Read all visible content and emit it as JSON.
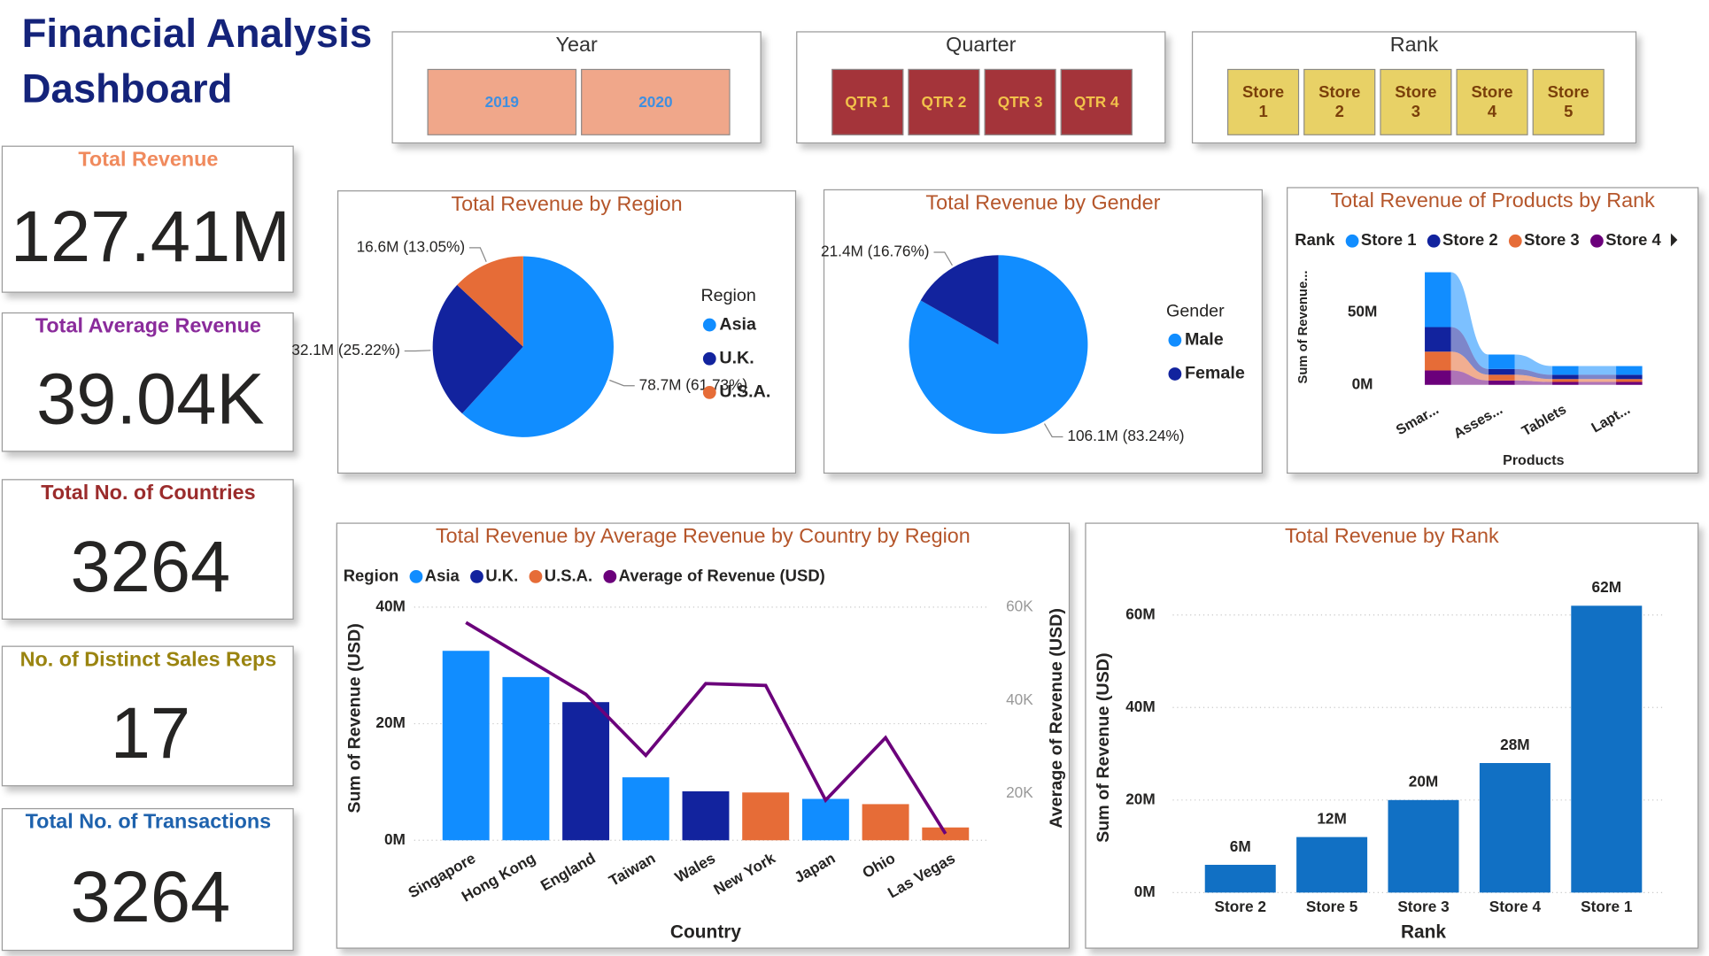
{
  "title": [
    "Financial Analysis",
    "Dashboard"
  ],
  "slicers": [
    {
      "title": "Year",
      "items": [
        "2019",
        "2020"
      ]
    },
    {
      "title": "Quarter",
      "items": [
        "QTR 1",
        "QTR 2",
        "QTR 3",
        "QTR 4"
      ]
    },
    {
      "title": "Rank",
      "items": [
        "Store 1",
        "Store 2",
        "Store 3",
        "Store 4",
        "Store 5"
      ]
    }
  ],
  "cards": [
    {
      "label": "Total Revenue",
      "value": "127.41M"
    },
    {
      "label": "Total Average Revenue",
      "value": "39.04K"
    },
    {
      "label": "Total No. of Countries",
      "value": "3264"
    },
    {
      "label": "No. of Distinct Sales Reps",
      "value": "17"
    },
    {
      "label": "Total No. of Transactions",
      "value": "3264"
    }
  ],
  "chart_data": [
    {
      "type": "pie",
      "title": "Total Revenue by Region",
      "legend_title": "Region",
      "categories": [
        "Asia",
        "U.K.",
        "U.S.A."
      ],
      "values": [
        78.7,
        32.1,
        16.6
      ],
      "value_labels": [
        "78.7M (61.73%)",
        "32.1M (25.22%)",
        "16.6M (13.05%)"
      ],
      "colors": [
        "#118dff",
        "#12239e",
        "#e66c37"
      ]
    },
    {
      "type": "pie",
      "title": "Total Revenue by Gender",
      "legend_title": "Gender",
      "categories": [
        "Male",
        "Female"
      ],
      "values": [
        106.1,
        21.4
      ],
      "value_labels": [
        "106.1M (83.24%)",
        "21.4M (16.76%)"
      ],
      "colors": [
        "#118dff",
        "#12239e"
      ]
    },
    {
      "type": "ribbon",
      "title": "Total Revenue of Products by Rank",
      "legend_title": "Rank",
      "x_label": "Products",
      "y_label": "Sum of Revenue...",
      "categories": [
        "Smar...",
        "Asses...",
        "Tablets",
        "Lapt..."
      ],
      "series": [
        {
          "name": "Store 1",
          "color": "#118dff",
          "values": [
            38,
            10,
            6,
            6
          ]
        },
        {
          "name": "Store 2",
          "color": "#12239e",
          "values": [
            17,
            4,
            3,
            3
          ]
        },
        {
          "name": "Store 3",
          "color": "#e66c37",
          "values": [
            13,
            4,
            2,
            2
          ]
        },
        {
          "name": "Store 4",
          "color": "#6b007b",
          "values": [
            10,
            3,
            2,
            2
          ]
        }
      ],
      "ylim": [
        0,
        80
      ],
      "yticks": [
        {
          "value": 0,
          "label": "0M"
        },
        {
          "value": 50,
          "label": "50M"
        }
      ]
    },
    {
      "type": "combo",
      "title": "Total Revenue by Average Revenue by Country by Region",
      "legend_title": "Region",
      "x_label": "Country",
      "y_label": "Sum of Revenue (USD)",
      "y2_label": "Average of Revenue (USD)",
      "categories": [
        "Singapore",
        "Hong Kong",
        "England",
        "Taiwan",
        "Wales",
        "New York",
        "Japan",
        "Ohio",
        "Las Vegas"
      ],
      "series": [
        {
          "name": "Asia",
          "color": "#118dff",
          "values": [
            32.5,
            28,
            null,
            10.8,
            null,
            null,
            7.1,
            null,
            null
          ]
        },
        {
          "name": "U.K.",
          "color": "#12239e",
          "values": [
            null,
            null,
            23.7,
            null,
            8.4,
            null,
            null,
            null,
            null
          ]
        },
        {
          "name": "U.S.A.",
          "color": "#e66c37",
          "values": [
            null,
            null,
            null,
            null,
            null,
            8.2,
            null,
            6.2,
            2.2
          ]
        },
        {
          "name": "Average of Revenue (USD)",
          "type": "line",
          "axis": "y2",
          "color": "#6b007b",
          "values": [
            56.7,
            49,
            41.3,
            28.2,
            43.6,
            43.2,
            18.6,
            32,
            11.4
          ]
        }
      ],
      "ylim": [
        0,
        40
      ],
      "yticks": [
        {
          "value": 0,
          "label": "0M"
        },
        {
          "value": 20,
          "label": "20M"
        },
        {
          "value": 40,
          "label": "40M"
        }
      ],
      "y2lim": [
        10,
        60
      ],
      "y2ticks": [
        {
          "value": 20,
          "label": "20K"
        },
        {
          "value": 40,
          "label": "40K"
        },
        {
          "value": 60,
          "label": "60K"
        }
      ],
      "grid": true
    },
    {
      "type": "bar",
      "title": "Total Revenue by Rank",
      "x_label": "Rank",
      "y_label": "Sum of Revenue (USD)",
      "categories": [
        "Store 2",
        "Store 5",
        "Store 3",
        "Store 4",
        "Store 1"
      ],
      "values": [
        6,
        12,
        20,
        28,
        62
      ],
      "value_labels": [
        "6M",
        "12M",
        "20M",
        "28M",
        "62M"
      ],
      "color": "#1170c4",
      "ylim": [
        0,
        65
      ],
      "yticks": [
        {
          "value": 0,
          "label": "0M"
        },
        {
          "value": 20,
          "label": "20M"
        },
        {
          "value": 40,
          "label": "40M"
        },
        {
          "value": 60,
          "label": "60M"
        }
      ],
      "grid": true
    }
  ]
}
